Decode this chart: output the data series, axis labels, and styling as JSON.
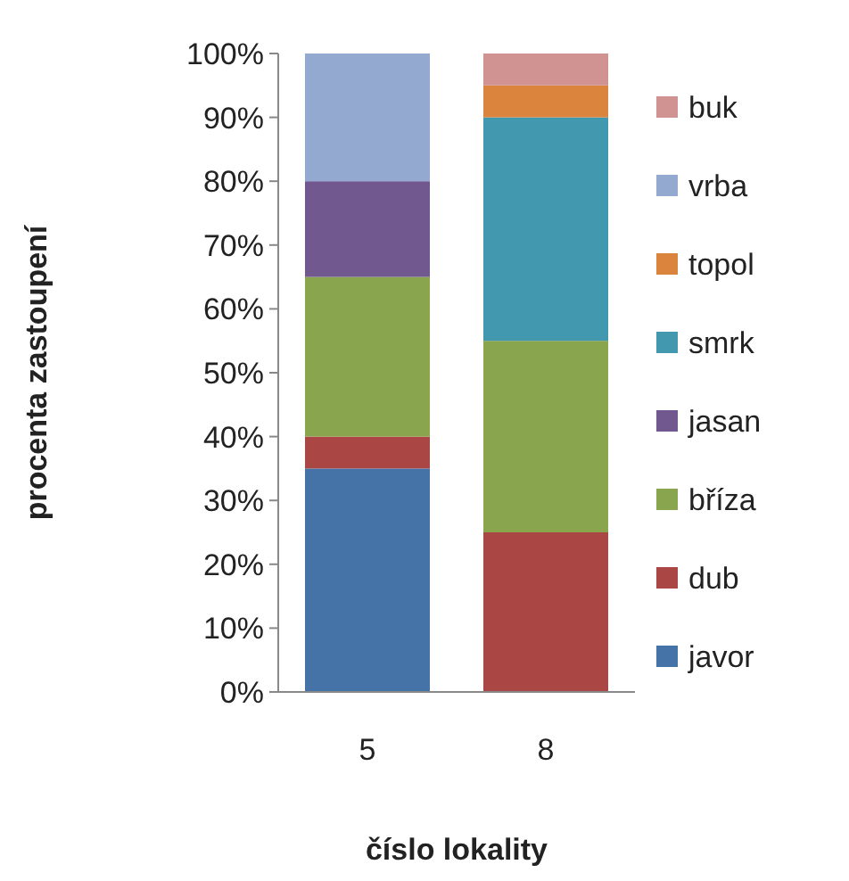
{
  "chart_data": {
    "type": "bar",
    "stacked": true,
    "xlabel": "číslo lokality",
    "ylabel": "procenta zastoupení",
    "categories": [
      "5",
      "8"
    ],
    "ylim": [
      0,
      100
    ],
    "yticks": [
      {
        "value": 0,
        "label": "0%"
      },
      {
        "value": 10,
        "label": "10%"
      },
      {
        "value": 20,
        "label": "20%"
      },
      {
        "value": 30,
        "label": "30%"
      },
      {
        "value": 40,
        "label": "40%"
      },
      {
        "value": 50,
        "label": "50%"
      },
      {
        "value": 60,
        "label": "60%"
      },
      {
        "value": 70,
        "label": "70%"
      },
      {
        "value": 80,
        "label": "80%"
      },
      {
        "value": 90,
        "label": "90%"
      },
      {
        "value": 100,
        "label": "100%"
      }
    ],
    "legend": "right",
    "grid": false,
    "series": [
      {
        "name": "javor",
        "color": "#4572a7",
        "values": [
          35,
          null
        ]
      },
      {
        "name": "dub",
        "color": "#aa4643",
        "values": [
          5,
          25
        ]
      },
      {
        "name": "bříza",
        "color": "#89a54e",
        "values": [
          25,
          30
        ]
      },
      {
        "name": "jasan",
        "color": "#71588f",
        "values": [
          15,
          null
        ]
      },
      {
        "name": "smrk",
        "color": "#4198af",
        "values": [
          null,
          35
        ]
      },
      {
        "name": "topol",
        "color": "#db843d",
        "values": [
          null,
          5
        ]
      },
      {
        "name": "vrba",
        "color": "#93a9cf",
        "values": [
          20,
          null
        ]
      },
      {
        "name": "buk",
        "color": "#d19392",
        "values": [
          null,
          5
        ]
      }
    ]
  }
}
